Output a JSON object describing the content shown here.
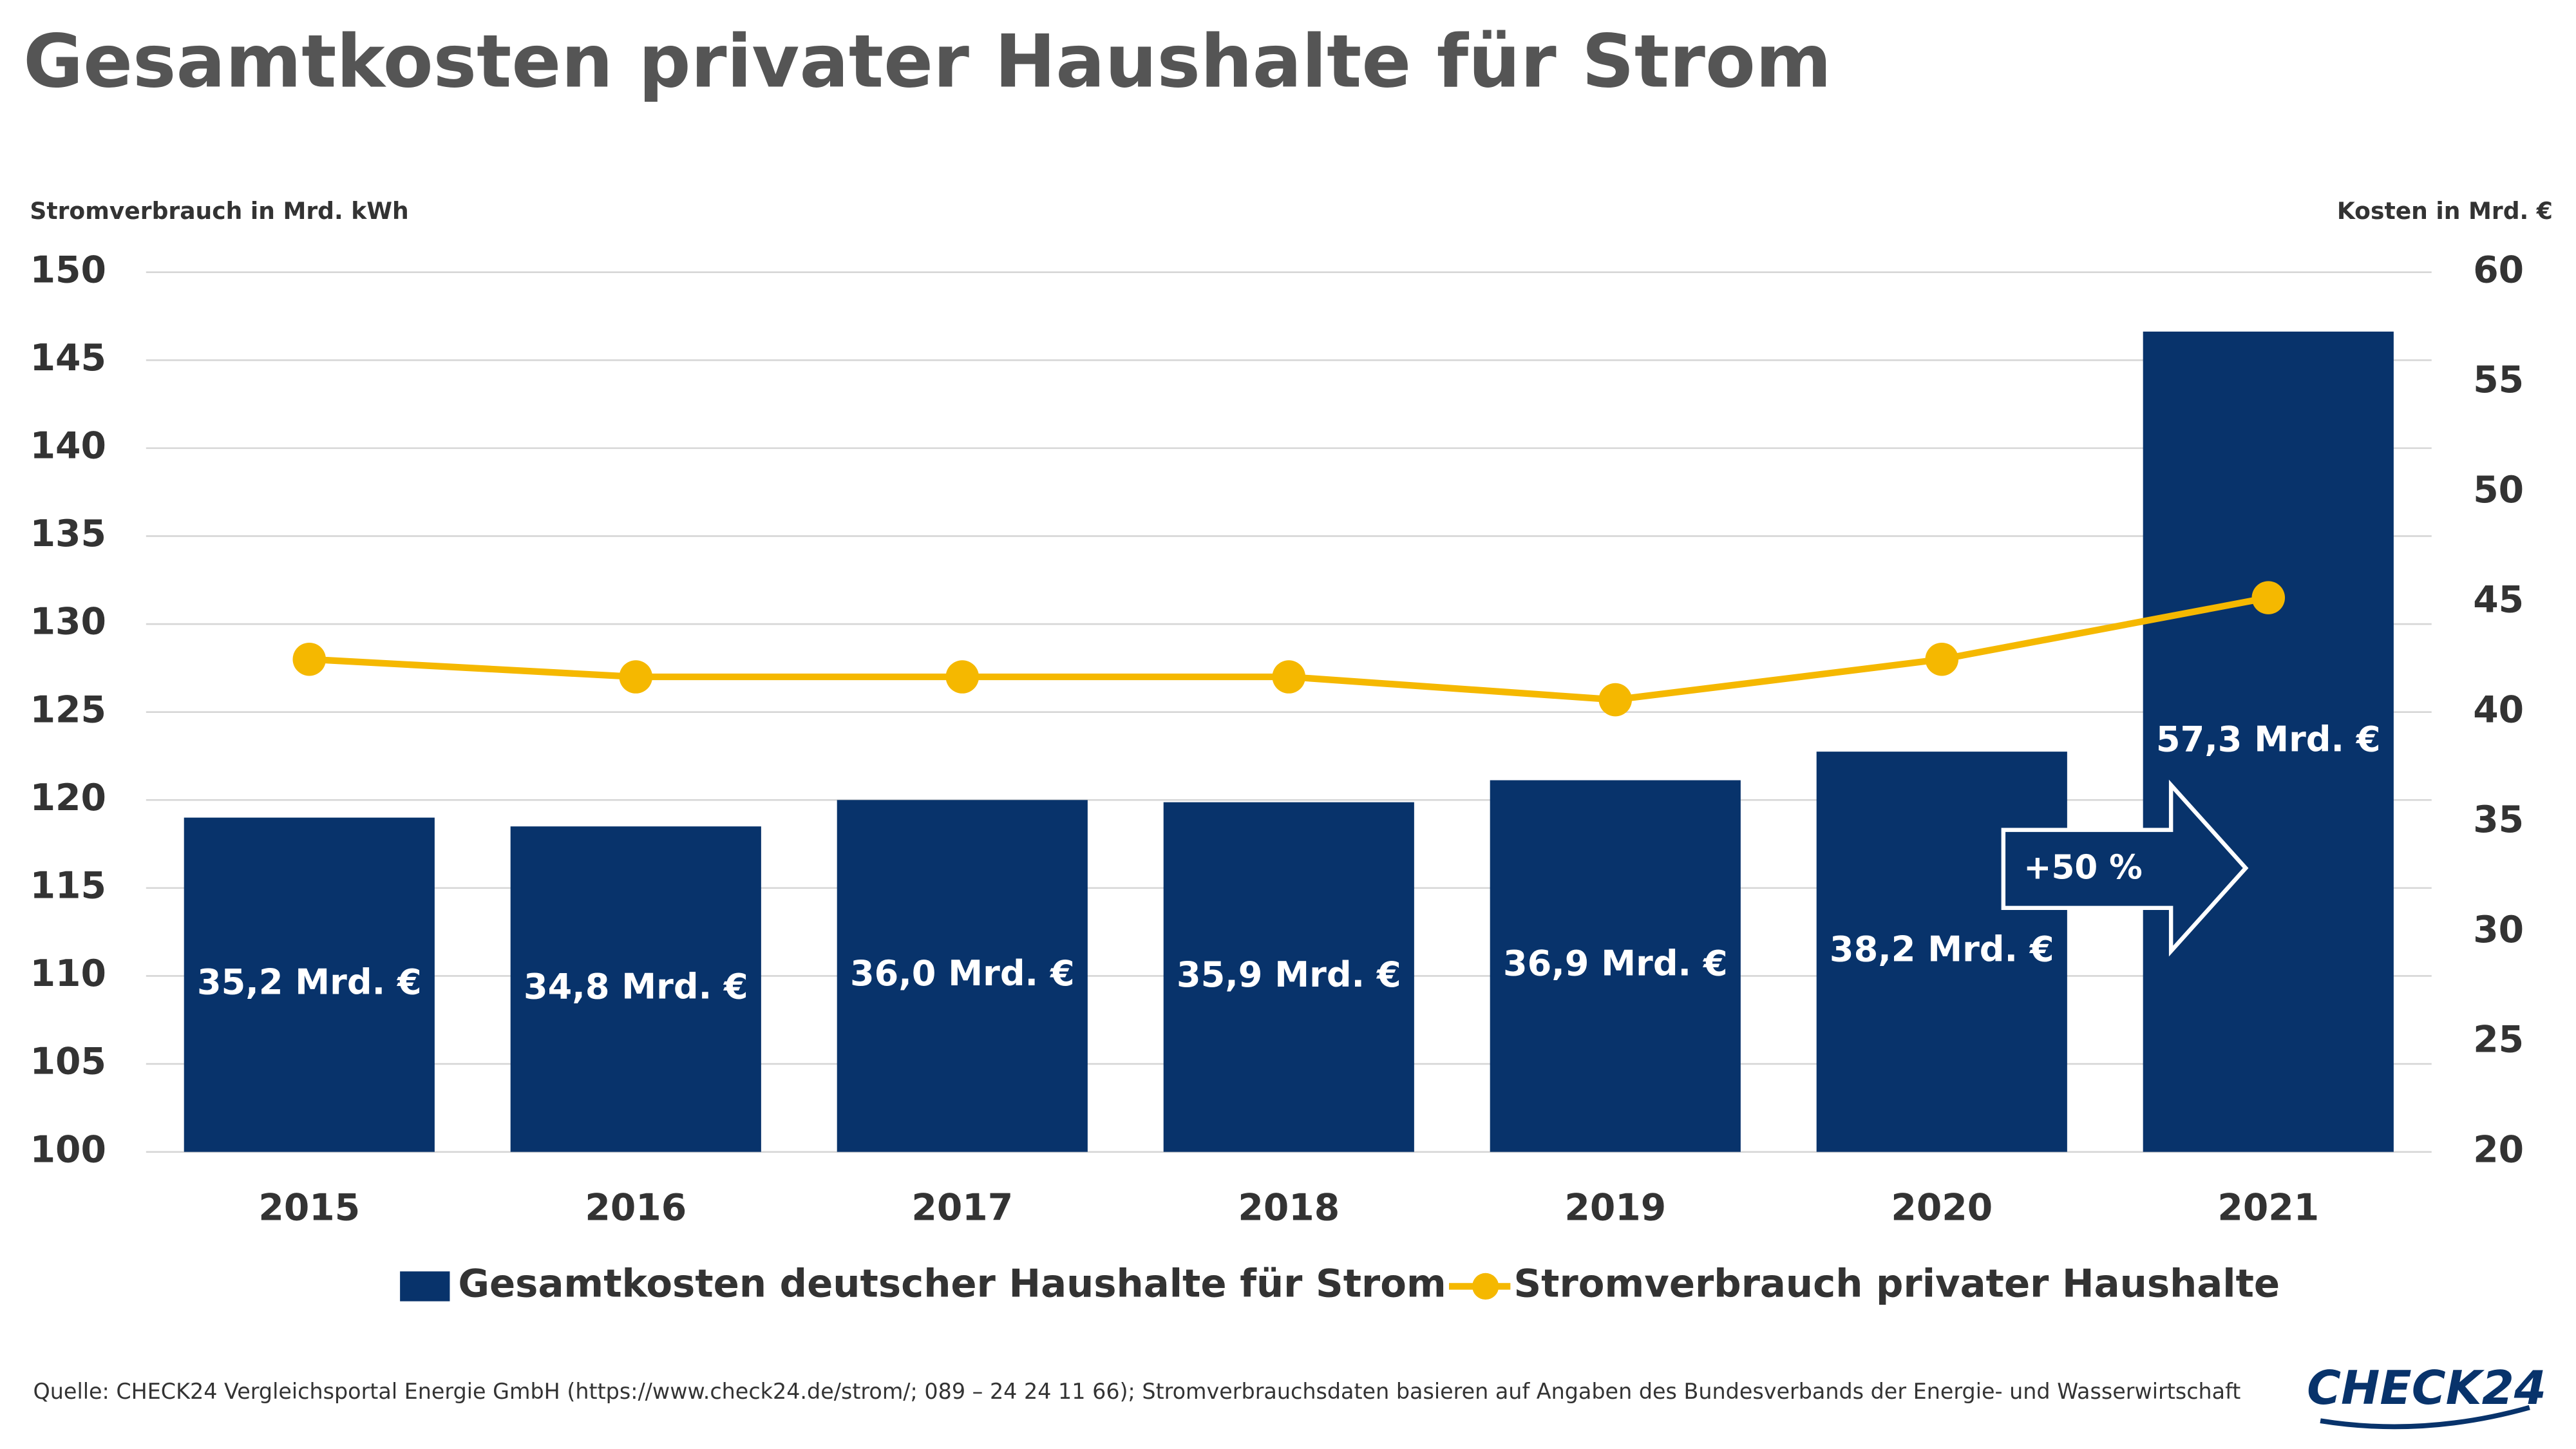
{
  "chart_data": {
    "type": "bar_line",
    "title": "Gesamtkosten privater Haushalte für Strom",
    "y_label": "Stromverbrauch in Mrd. kWh",
    "y2_label": "Kosten in Mrd. €",
    "categories": [
      "2015",
      "2016",
      "2017",
      "2018",
      "2019",
      "2020",
      "2021"
    ],
    "series": [
      {
        "name": "Gesamtkosten deutscher Haushalte für Strom",
        "type": "bar",
        "axis": "y2",
        "color": "#08336b",
        "values": [
          35.2,
          34.8,
          36.0,
          35.9,
          36.9,
          38.2,
          57.3
        ],
        "value_labels": [
          "35,2 Mrd. €",
          "34,8 Mrd. €",
          "36,0 Mrd. €",
          "35,9 Mrd. €",
          "36,9 Mrd. €",
          "38,2 Mrd. €",
          "57,3 Mrd. €"
        ]
      },
      {
        "name": "Stromverbrauch privater Haushalte",
        "type": "line",
        "axis": "y",
        "color": "#f5b800",
        "values": [
          128,
          127,
          127,
          127,
          125.7,
          128,
          131.5
        ]
      }
    ],
    "ylim": [
      100,
      150
    ],
    "yticks": [
      100,
      105,
      110,
      115,
      120,
      125,
      130,
      135,
      140,
      145,
      150
    ],
    "y2lim": [
      20,
      60
    ],
    "y2ticks": [
      20,
      25,
      30,
      35,
      40,
      45,
      50,
      55,
      60
    ],
    "grid": true,
    "annotation": "+50 %",
    "source": "Quelle: CHECK24 Vergleichsportal Energie GmbH (https://www.check24.de/strom/; 089 – 24 24 11 66); Stromverbrauchsdaten basieren auf Angaben des Bundesverbands der Energie- und Wasserwirtschaft",
    "logo": "CHECK24"
  }
}
